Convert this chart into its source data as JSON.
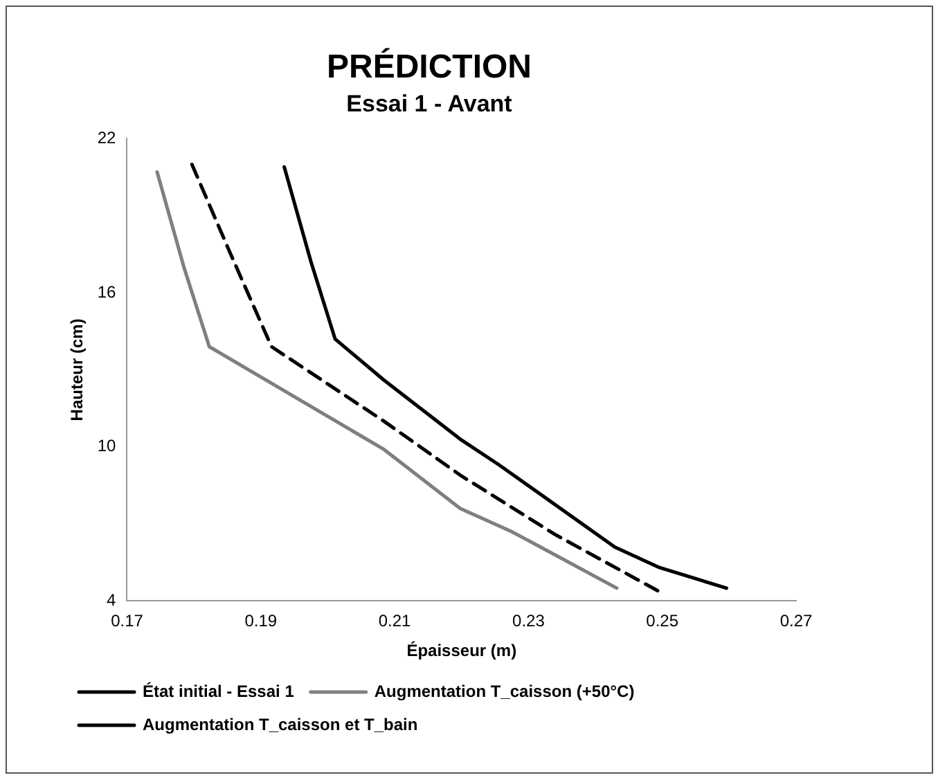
{
  "chart_data": {
    "type": "line",
    "title": "PRÉDICTION",
    "subtitle": "Essai 1 - Avant",
    "xlabel": "Épaisseur (m)",
    "ylabel": "Hauteur (cm)",
    "series": [
      {
        "name": "État initial - Essai 1",
        "color": "#000000",
        "line_style": "solid",
        "x": [
          0.1935,
          0.1975,
          0.2011,
          0.2084,
          0.2198,
          0.2256,
          0.2429,
          0.2496,
          0.2596
        ],
        "values": [
          20.9,
          17.2,
          14.2,
          12.6,
          10.3,
          9.3,
          6.1,
          5.3,
          4.5
        ]
      },
      {
        "name": "Augmentation T_caisson (+50°C)",
        "color": "#7f7f7f",
        "line_style": "solid",
        "x": [
          0.1745,
          0.1785,
          0.1823,
          0.2084,
          0.2198,
          0.2275,
          0.2432
        ],
        "values": [
          20.7,
          17.0,
          13.9,
          9.9,
          7.6,
          6.7,
          4.5
        ]
      },
      {
        "name": "Augmentation T_caisson et T_bain",
        "color": "#000000",
        "line_style": "dashed",
        "x": [
          0.1797,
          0.1855,
          0.1916,
          0.2084,
          0.2198,
          0.2339,
          0.2493
        ],
        "values": [
          21.0,
          17.5,
          13.9,
          11.0,
          8.9,
          6.6,
          4.4
        ]
      }
    ],
    "xlim": [
      0.17,
      0.27
    ],
    "xticks": [
      0.17,
      0.19,
      0.21,
      0.23,
      0.25,
      0.27
    ],
    "ylim": [
      4,
      22
    ],
    "yticks": [
      4,
      10,
      16,
      22
    ],
    "grid": false,
    "legend": "bottom",
    "marker": "none"
  }
}
